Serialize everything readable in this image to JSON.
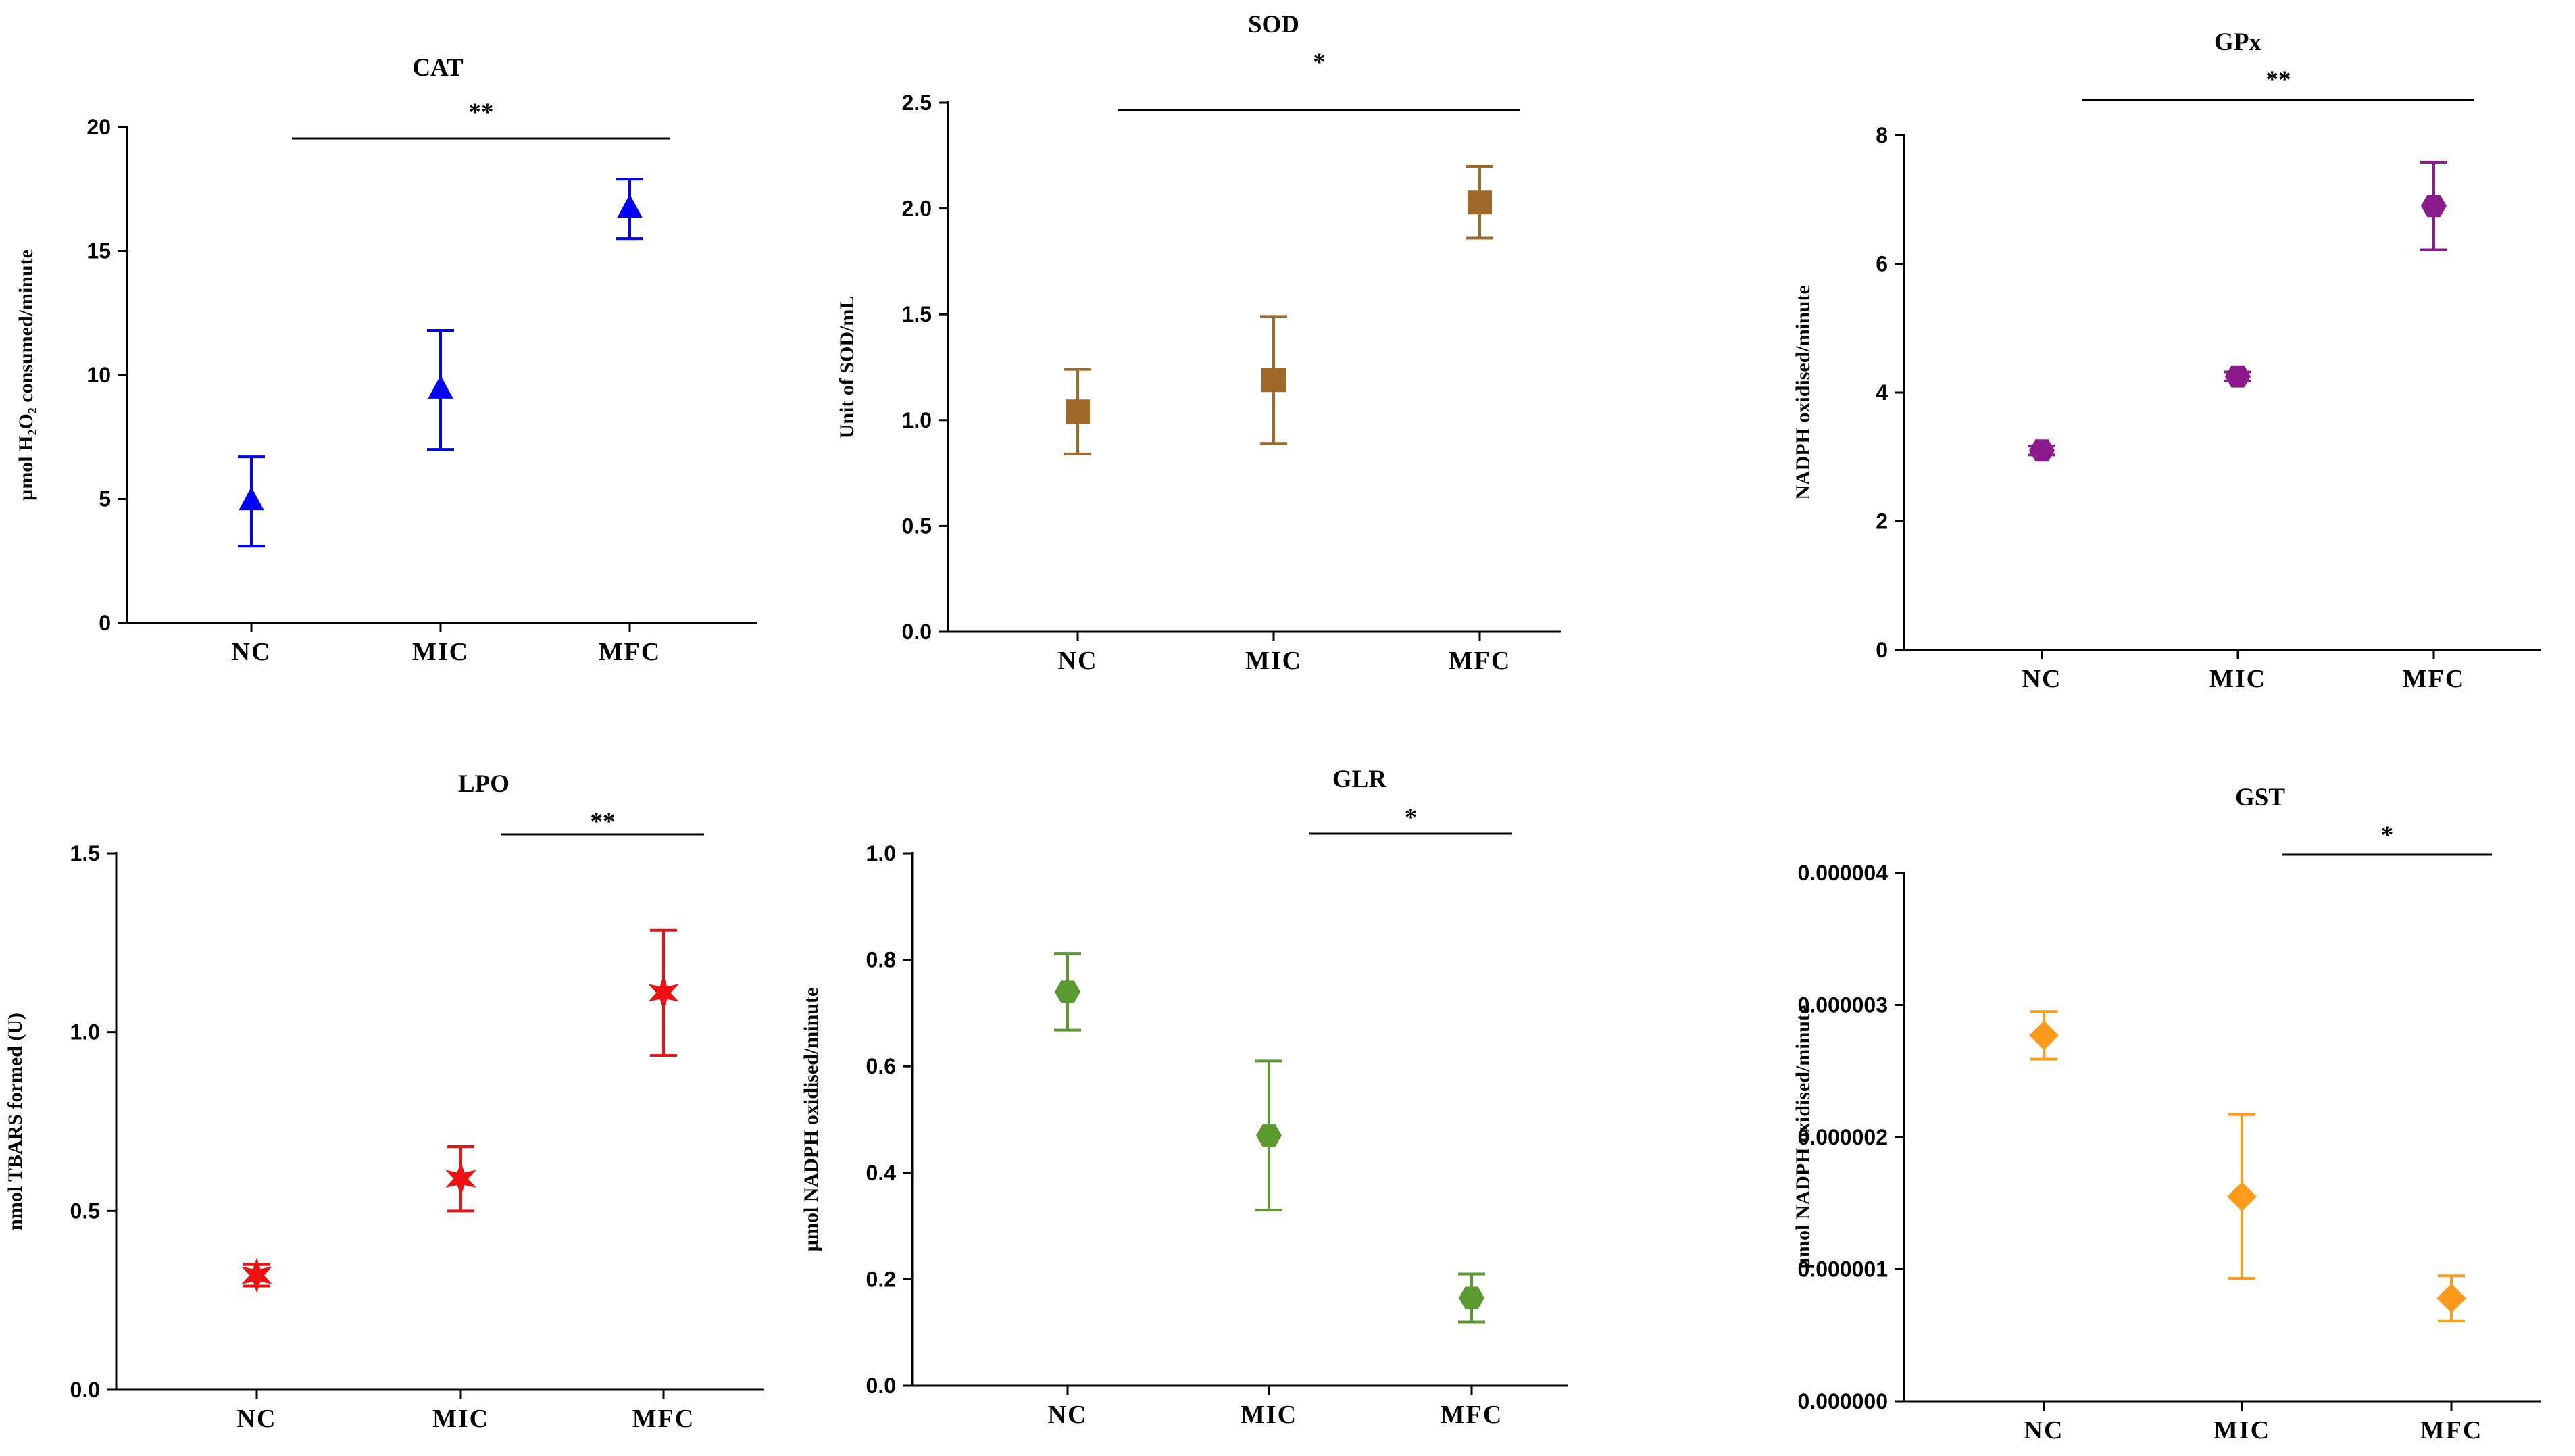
{
  "chart_data": [
    {
      "type": "scatter",
      "title": "CAT",
      "ylabel": "µmol H₂O₂ consumed/minute",
      "categories": [
        "NC",
        "MIC",
        "MFC"
      ],
      "values": [
        4.9,
        9.4,
        16.7
      ],
      "errors": [
        1.8,
        2.4,
        1.2
      ],
      "ylim": [
        0,
        20
      ],
      "yticks": [
        "0",
        "5",
        "10",
        "15",
        "20"
      ],
      "marker": "triangle",
      "color": "#0000ff",
      "significance": "**",
      "bracket": [
        "NC",
        "MFC"
      ]
    },
    {
      "type": "scatter",
      "title": "SOD",
      "ylabel": "Unit of SOD/mL",
      "categories": [
        "NC",
        "MIC",
        "MFC"
      ],
      "values": [
        1.04,
        1.19,
        2.03
      ],
      "errors": [
        0.2,
        0.3,
        0.17
      ],
      "ylim": [
        0,
        2.5
      ],
      "yticks": [
        "0.0",
        "0.5",
        "1.0",
        "1.5",
        "2.0",
        "2.5"
      ],
      "marker": "square",
      "color": "#a0692a",
      "significance": "*",
      "bracket": [
        "NC",
        "MFC"
      ]
    },
    {
      "type": "scatter",
      "title": "GPx",
      "ylabel": "NADPH oxidised/minute",
      "categories": [
        "NC",
        "MIC",
        "MFC"
      ],
      "values": [
        3.1,
        4.25,
        6.9
      ],
      "errors": [
        0.07,
        0.07,
        0.68
      ],
      "ylim": [
        0,
        8
      ],
      "yticks": [
        "0",
        "2",
        "4",
        "6",
        "8"
      ],
      "marker": "hexagon",
      "color": "#8b1a8b",
      "significance": "**",
      "bracket": [
        "NC",
        "MFC"
      ]
    },
    {
      "type": "scatter",
      "title": "LPO",
      "ylabel": "nmol TBARS formed (U)",
      "categories": [
        "NC",
        "MIC",
        "MFC"
      ],
      "values": [
        0.32,
        0.59,
        1.11
      ],
      "errors": [
        0.03,
        0.09,
        0.175
      ],
      "ylim": [
        0,
        1.5
      ],
      "yticks": [
        "0.0",
        "0.5",
        "1.0",
        "1.5"
      ],
      "marker": "star",
      "color": "#ee1111",
      "significance": "**",
      "bracket": [
        "MIC",
        "MFC"
      ]
    },
    {
      "type": "scatter",
      "title": "GLR",
      "ylabel": "µmol NADPH oxidised/minute",
      "categories": [
        "NC",
        "MIC",
        "MFC"
      ],
      "values": [
        0.74,
        0.47,
        0.165
      ],
      "errors": [
        0.072,
        0.14,
        0.045
      ],
      "ylim": [
        0,
        1.0
      ],
      "yticks": [
        "0.0",
        "0.2",
        "0.4",
        "0.6",
        "0.8",
        "1.0"
      ],
      "marker": "hexagon",
      "color": "#5a9a2e",
      "significance": "*",
      "bracket": [
        "MIC",
        "MFC"
      ]
    },
    {
      "type": "scatter",
      "title": "GST",
      "ylabel": "µmol NADPH oxidised/minute",
      "categories": [
        "NC",
        "MIC",
        "MFC"
      ],
      "values": [
        2.77e-06,
        1.55e-06,
        7.8e-07
      ],
      "errors": [
        1.8e-07,
        6.2e-07,
        1.7e-07
      ],
      "ylim": [
        0,
        4e-06
      ],
      "yticks": [
        "0.000000",
        "0.000001",
        "0.000002",
        "0.000003",
        "0.000004"
      ],
      "marker": "diamond",
      "color": "#ff9a1a",
      "significance": "*",
      "bracket": [
        "MIC",
        "MFC"
      ]
    }
  ]
}
